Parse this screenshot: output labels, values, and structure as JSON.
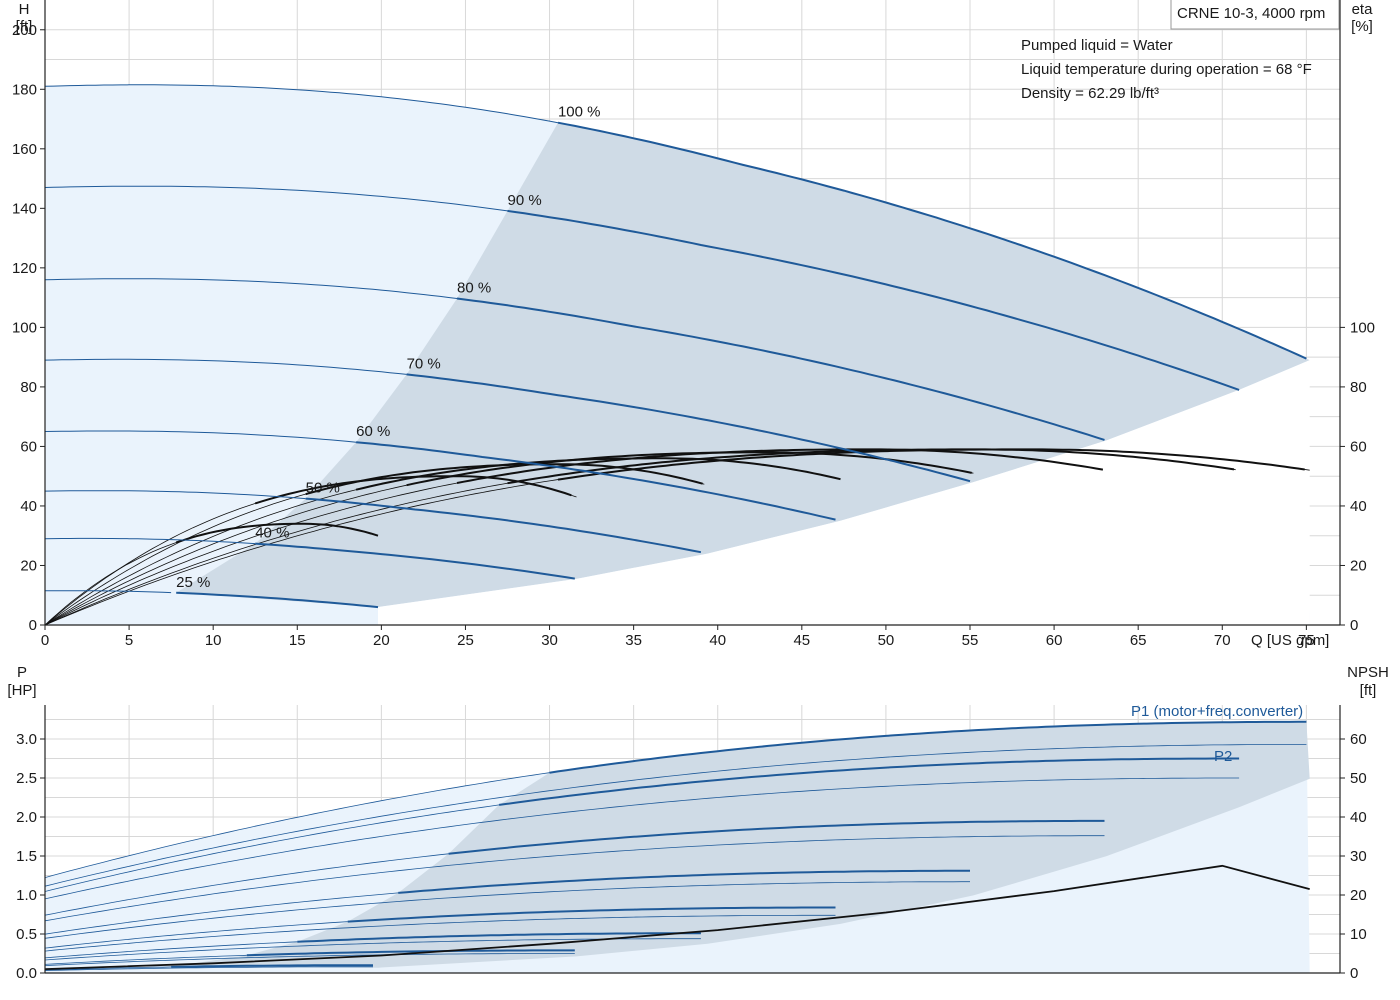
{
  "chart_data": [
    {
      "type": "line",
      "title": "CRNE 10-3, 4000 rpm",
      "annotations": [
        "Pumped liquid = Water",
        "Liquid temperature during operation = 68 °F",
        "Density = 62.29 lb/ft³"
      ],
      "xlabel": "Q [US gpm]",
      "ylabel_left_line1": "H",
      "ylabel_left_line2": "[ft]",
      "ylabel_right_line1": "eta",
      "ylabel_right_line2": "[%]",
      "xlim": [
        0,
        77
      ],
      "ylim_left": [
        0,
        210
      ],
      "ylim_right": [
        0,
        100
      ],
      "x_ticks": [
        "0",
        "5",
        "10",
        "15",
        "20",
        "25",
        "30",
        "35",
        "40",
        "45",
        "50",
        "55",
        "60",
        "65",
        "70",
        "75"
      ],
      "y_ticks_left": [
        "0",
        "20",
        "40",
        "60",
        "80",
        "100",
        "120",
        "140",
        "160",
        "180",
        "200"
      ],
      "y_ticks_right": [
        "0",
        "20",
        "40",
        "60",
        "80",
        "100"
      ],
      "grid": true,
      "speed_curves": [
        {
          "name": "100 %",
          "qmax": 75.2,
          "h_shutoff": 181,
          "h_maxq": 89,
          "label_q": 30.5,
          "label_h": 183
        },
        {
          "name": "90 %",
          "qmax": 71.0,
          "h_shutoff": 147,
          "h_maxq": 79,
          "label_q": 27.5,
          "label_h": 148
        },
        {
          "name": "80 %",
          "qmax": 63.1,
          "h_shutoff": 116,
          "h_maxq": 62,
          "label_q": 24.5,
          "label_h": 117
        },
        {
          "name": "70 %",
          "qmax": 55.2,
          "h_shutoff": 89,
          "h_maxq": 48,
          "label_q": 21.5,
          "label_h": 90
        },
        {
          "name": "60 %",
          "qmax": 47.3,
          "h_shutoff": 65,
          "h_maxq": 35,
          "label_q": 18.5,
          "label_h": 66
        },
        {
          "name": "50 %",
          "qmax": 39.4,
          "h_shutoff": 45,
          "h_maxq": 24,
          "label_q": 15.5,
          "label_h": 46
        },
        {
          "name": "40 %",
          "qmax": 31.6,
          "h_shutoff": 29,
          "h_maxq": 15.5,
          "label_q": 12.5,
          "label_h": 29
        },
        {
          "name": "25 %",
          "qmax": 19.8,
          "h_shutoff": 11.5,
          "h_maxq": 6,
          "label_q": 7.8,
          "label_h": 12
        }
      ],
      "efficiency_curves": [
        {
          "qmax": 75.2,
          "eta_max": 59,
          "eta_end": 52
        },
        {
          "qmax": 71.0,
          "eta_max": 59,
          "eta_end": 52
        },
        {
          "qmax": 63.1,
          "eta_max": 59,
          "eta_end": 52
        },
        {
          "qmax": 55.2,
          "eta_max": 58,
          "eta_end": 51
        },
        {
          "qmax": 47.3,
          "eta_max": 56,
          "eta_end": 49
        },
        {
          "qmax": 39.4,
          "eta_max": 54,
          "eta_end": 47
        },
        {
          "qmax": 31.6,
          "eta_max": 50,
          "eta_end": 43
        },
        {
          "qmax": 19.8,
          "eta_max": 34,
          "eta_end": 30
        }
      ]
    },
    {
      "type": "line",
      "xlim": [
        0,
        77
      ],
      "ylabel_left_line1": "P",
      "ylabel_left_line2": "[HP]",
      "ylabel_right_line1": "NPSH",
      "ylabel_right_line2": "[ft]",
      "ylim_left": [
        0,
        3.5
      ],
      "ylim_right": [
        0,
        70
      ],
      "y_ticks_left": [
        "0.0",
        "0.5",
        "1.0",
        "1.5",
        "2.0",
        "2.5",
        "3.0"
      ],
      "y_ticks_right": [
        "0",
        "10",
        "20",
        "30",
        "40",
        "50",
        "60"
      ],
      "series": [
        {
          "name": "P1 (motor+freq.converter)",
          "role": "P1"
        },
        {
          "name": "P2",
          "role": "P2"
        }
      ],
      "p1_envelope": [
        [
          30,
          2.75
        ],
        [
          40.5,
          3.22
        ],
        [
          75.2,
          3.22
        ]
      ],
      "p2_envelope": [
        [
          40.5,
          2.93
        ],
        [
          75.2,
          2.93
        ]
      ],
      "power_curves": [
        {
          "qmax": 75.2,
          "qstart": 30,
          "p1_start": 2.75,
          "p1_max": 3.22,
          "p2_max": 2.93
        },
        {
          "qmax": 71.0,
          "qstart": 27,
          "p1_start": 2.02,
          "p1_max": 2.75,
          "p2_max": 2.5
        },
        {
          "qmax": 63.1,
          "qstart": 24,
          "p1_start": 1.45,
          "p1_max": 1.95,
          "p2_max": 1.76
        },
        {
          "qmax": 55.2,
          "qstart": 21,
          "p1_start": 0.99,
          "p1_max": 1.31,
          "p2_max": 1.17
        },
        {
          "qmax": 47.3,
          "qstart": 18,
          "p1_start": 0.62,
          "p1_max": 0.84,
          "p2_max": 0.74
        },
        {
          "qmax": 39.4,
          "qstart": 15,
          "p1_start": 0.39,
          "p1_max": 0.51,
          "p2_max": 0.44
        },
        {
          "qmax": 31.6,
          "qstart": 12,
          "p1_start": 0.22,
          "p1_max": 0.29,
          "p2_max": 0.25
        },
        {
          "qmax": 19.8,
          "qstart": 7.5,
          "p1_start": 0.08,
          "p1_max": 0.1,
          "p2_max": 0.08
        }
      ],
      "npsh": [
        [
          0,
          1
        ],
        [
          10,
          2.5
        ],
        [
          20,
          4.5
        ],
        [
          30,
          7.5
        ],
        [
          40,
          11
        ],
        [
          50,
          15.5
        ],
        [
          60,
          21
        ],
        [
          70,
          27.5
        ],
        [
          75.2,
          21.5
        ]
      ],
      "npsh_note": "NPSH curve in ft on right axis"
    }
  ],
  "colors": {
    "curve_blue": "#1f5a99",
    "region_dark": "#cfdbe6",
    "region_light": "#eaf3fc",
    "black": "#111111"
  }
}
